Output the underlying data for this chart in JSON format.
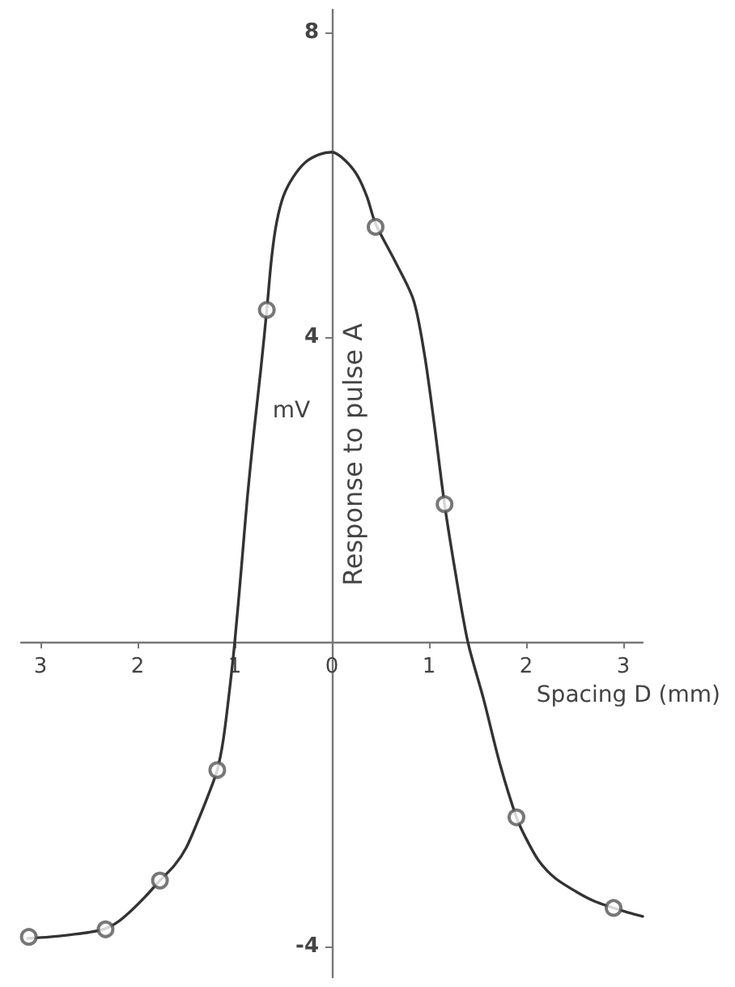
{
  "chart_data": {
    "type": "scatter",
    "xlabel": "Spacing D (mm)",
    "ylabel": "Response to pulse A",
    "annotations": [
      "mV"
    ],
    "xlim": [
      -3.2,
      3.2
    ],
    "ylim": [
      -4.4,
      8.3
    ],
    "xticks": [
      {
        "value": -3,
        "label": "3"
      },
      {
        "value": -2,
        "label": "2"
      },
      {
        "value": -1,
        "label": "1"
      },
      0,
      1,
      2,
      3
    ],
    "yticks": [
      -4,
      4,
      8
    ],
    "grid": false,
    "marker": "circle",
    "series": [
      {
        "type": "line",
        "color": "#333333",
        "marker": "none",
        "x": [
          -3.13,
          -2.9,
          -2.68,
          -2.5,
          -2.33,
          -2.2,
          -2.07,
          -1.92,
          -1.77,
          -1.62,
          -1.5,
          -1.38,
          -1.27,
          -1.18,
          -1.12,
          -1.06,
          -1.0,
          -0.93,
          -0.87,
          -0.8,
          -0.73,
          -0.67,
          -0.62,
          -0.57,
          -0.5,
          -0.4,
          -0.27,
          -0.13,
          0,
          0.13,
          0.26,
          0.36,
          0.45,
          0.65,
          0.84,
          0.95,
          1.05,
          1.16,
          1.28,
          1.4,
          1.56,
          1.73,
          1.9,
          2.0,
          2.13,
          2.3,
          2.52,
          2.7,
          2.9,
          3.05,
          3.2
        ],
        "values": [
          -3.89,
          -3.87,
          -3.84,
          -3.81,
          -3.76,
          -3.67,
          -3.53,
          -3.34,
          -3.13,
          -2.93,
          -2.7,
          -2.35,
          -2.0,
          -1.68,
          -1.3,
          -0.7,
          0,
          1.0,
          1.9,
          2.79,
          3.6,
          4.36,
          5.05,
          5.5,
          5.85,
          6.1,
          6.3,
          6.4,
          6.43,
          6.33,
          6.13,
          5.85,
          5.49,
          5.0,
          4.49,
          3.8,
          2.9,
          1.81,
          0.85,
          0,
          -0.74,
          -1.6,
          -2.3,
          -2.58,
          -2.87,
          -3.1,
          -3.28,
          -3.4,
          -3.49,
          -3.55,
          -3.6
        ]
      },
      {
        "type": "scatter",
        "color": "#555555",
        "x": [
          -3.12,
          -2.33,
          -1.77,
          -1.18,
          -0.67,
          0.45,
          1.16,
          1.9,
          2.9
        ],
        "values": [
          -3.87,
          -3.77,
          -3.13,
          -1.68,
          4.36,
          5.45,
          1.81,
          -2.3,
          -3.49
        ]
      }
    ]
  }
}
